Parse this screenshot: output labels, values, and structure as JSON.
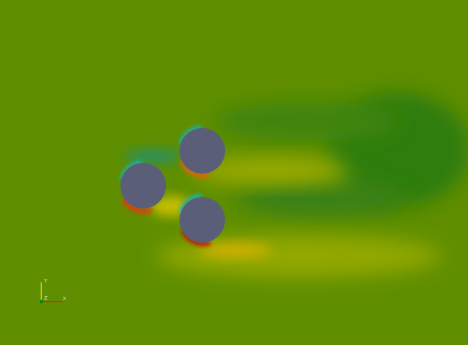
{
  "axes": {
    "y": "Y",
    "z": "Z",
    "x": "X"
  }
}
